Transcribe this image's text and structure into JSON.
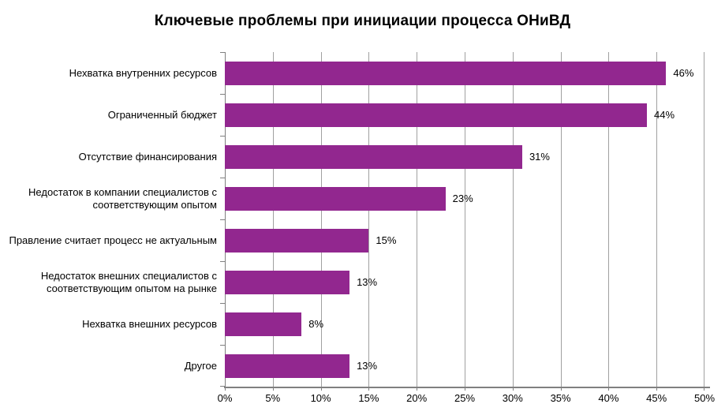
{
  "chart_data": {
    "type": "bar",
    "orientation": "horizontal",
    "title": "Ключевые проблемы при инициации процесса ОНиВД",
    "categories": [
      "Нехватка внутренних ресурсов",
      "Ограниченный бюджет",
      "Отсутствие финансирования",
      "Недостаток в компании специалистов с соответствующим опытом",
      "Правление считает процесс не актуальным",
      "Недостаток внешних специалистов с соответствующим опытом на рынке",
      "Нехватка внешних ресурсов",
      "Другое"
    ],
    "values": [
      46,
      44,
      31,
      23,
      15,
      13,
      8,
      13
    ],
    "value_labels": [
      "46%",
      "44%",
      "31%",
      "23%",
      "15%",
      "13%",
      "8%",
      "13%"
    ],
    "x_ticks": [
      "0%",
      "5%",
      "10%",
      "15%",
      "20%",
      "25%",
      "30%",
      "35%",
      "40%",
      "45%",
      "50%"
    ],
    "xlim": [
      0,
      50
    ],
    "xlabel": "",
    "ylabel": "",
    "grid": true,
    "legend": false,
    "bar_color": "#92278F",
    "gridline_color": "#a0a0a0",
    "axis_color": "#808080",
    "background_color": "#ffffff"
  }
}
